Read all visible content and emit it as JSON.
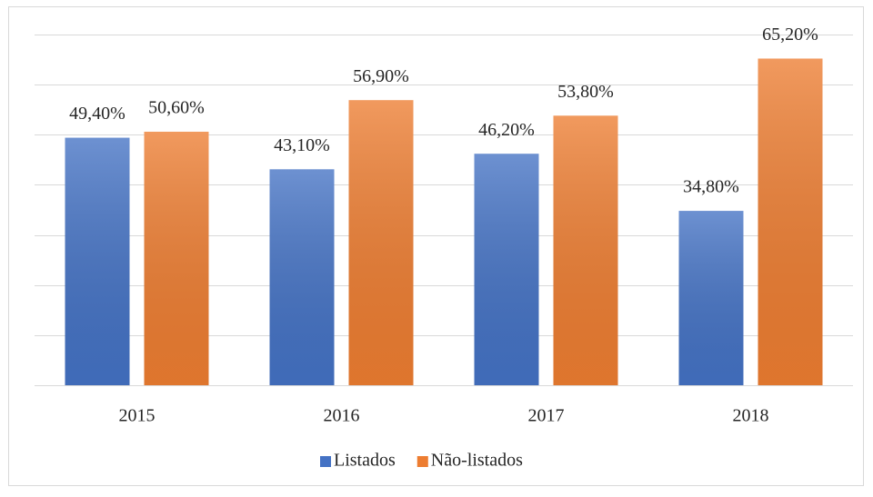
{
  "chart_data": {
    "type": "bar",
    "categories": [
      "2015",
      "2016",
      "2017",
      "2018"
    ],
    "series": [
      {
        "name": "Listados",
        "color": "#4472c4",
        "values": [
          49.4,
          43.1,
          46.2,
          34.8
        ],
        "value_labels": [
          "49,40%",
          "43,10%",
          "46,20%",
          "34,80%"
        ]
      },
      {
        "name": "Não-listados",
        "color": "#ed7d31",
        "values": [
          50.6,
          56.9,
          53.8,
          65.2
        ],
        "value_labels": [
          "50,60%",
          "56,90%",
          "53,80%",
          "65,20%"
        ]
      }
    ],
    "ylim": [
      0,
      70
    ],
    "yticks": [
      0,
      10,
      20,
      30,
      40,
      50,
      60,
      70
    ],
    "grid": true,
    "legend": "bottom"
  }
}
